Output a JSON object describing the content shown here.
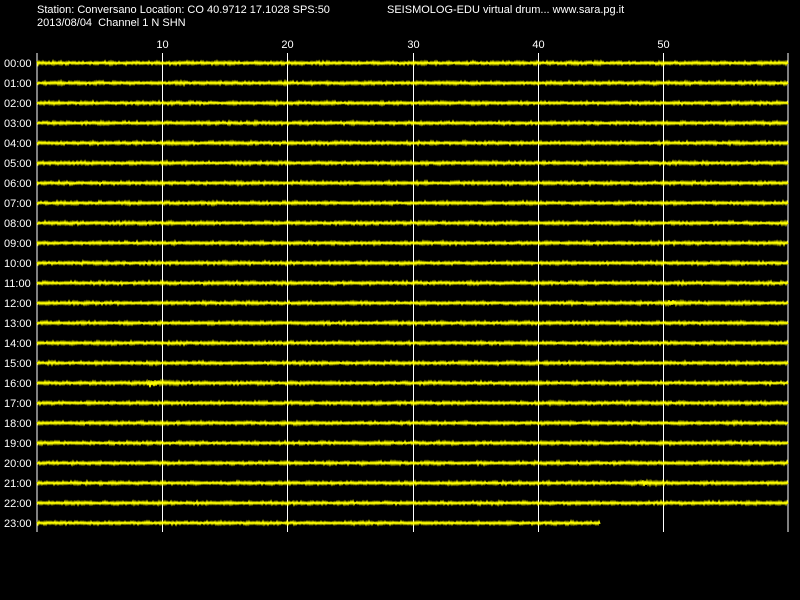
{
  "header": {
    "station_line": "Station: Conversano Location: CO 40.9712 17.1028 SPS:50",
    "app_line": "SEISMOLOG-EDU virtual drum... www.sara.pg.it",
    "date_line": "2013/08/04  Channel 1 N SHN"
  },
  "colors": {
    "background": "#000000",
    "trace": "#ffff00",
    "grid": "#ffffff",
    "text": "#ffffff"
  },
  "drum": {
    "minute_ticks": [
      "10",
      "20",
      "30",
      "40",
      "50"
    ],
    "minute_range": [
      0,
      60
    ],
    "hour_labels": [
      "00:00",
      "01:00",
      "02:00",
      "03:00",
      "04:00",
      "05:00",
      "06:00",
      "07:00",
      "08:00",
      "09:00",
      "10:00",
      "11:00",
      "12:00",
      "13:00",
      "14:00",
      "15:00",
      "16:00",
      "17:00",
      "18:00",
      "19:00",
      "20:00",
      "21:00",
      "22:00",
      "23:00"
    ],
    "last_row_end_minute": 45,
    "events": [
      {
        "hour": 16,
        "minute": 9,
        "amplitude": 3
      },
      {
        "hour": 21,
        "minute": 48.5,
        "amplitude": 2
      },
      {
        "hour": 12,
        "minute": 50.5,
        "amplitude": 1.5
      }
    ]
  }
}
